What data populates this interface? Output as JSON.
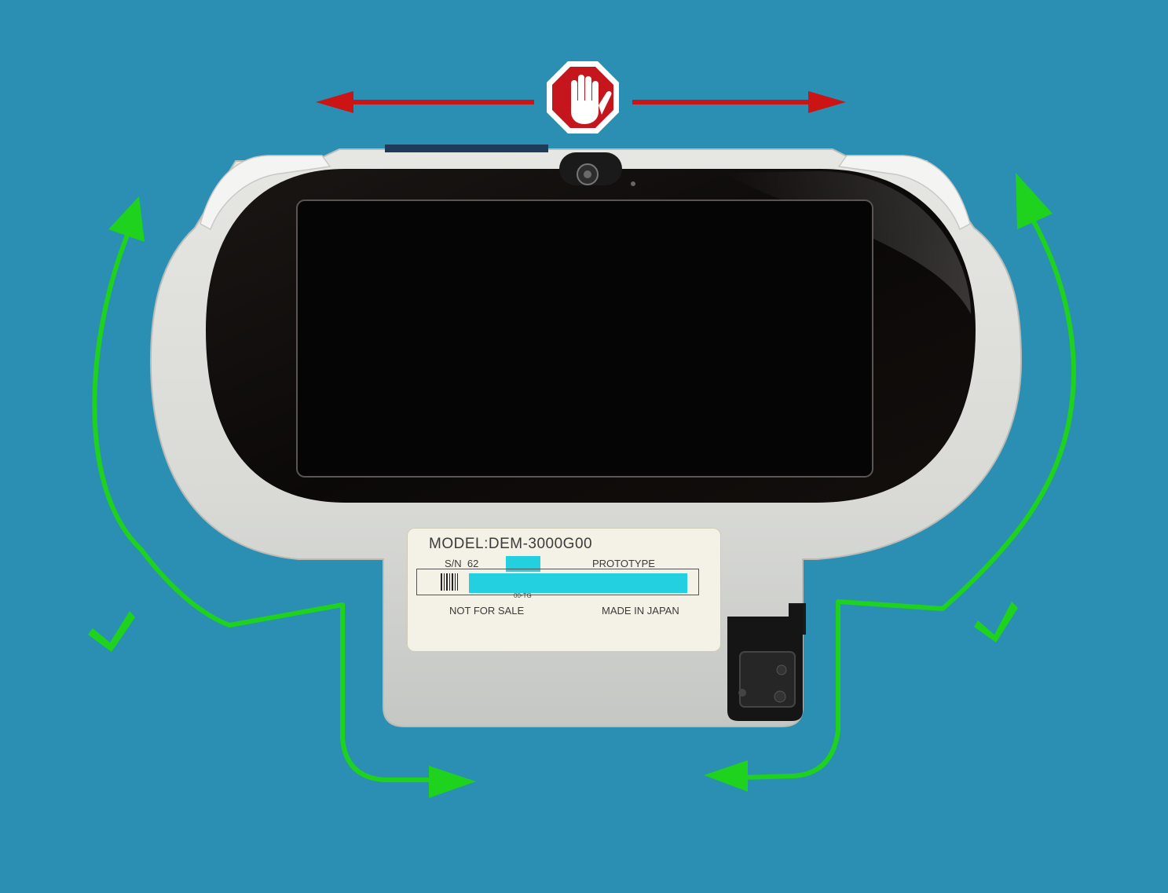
{
  "image": {
    "background_color": "#2b8fb3",
    "accent_colors": {
      "prohibited": "#cc1414",
      "allowed": "#1ed21e",
      "redaction": "#22d0e0"
    }
  },
  "device_label": {
    "model": "MODEL:DEM-3000G00",
    "serial_prefix": "S/N",
    "serial_visible": "62",
    "status": "PROTOTYPE",
    "small_code": "00-TG",
    "sale_notice": "NOT FOR SALE",
    "origin": "MADE IN JAPAN"
  },
  "annotations": {
    "top_symbol_icon": "stop-hand-icon",
    "top_arrows_meaning": "prohibited",
    "side_arrows_meaning": "allowed",
    "checkmark_glyph": "✔"
  }
}
